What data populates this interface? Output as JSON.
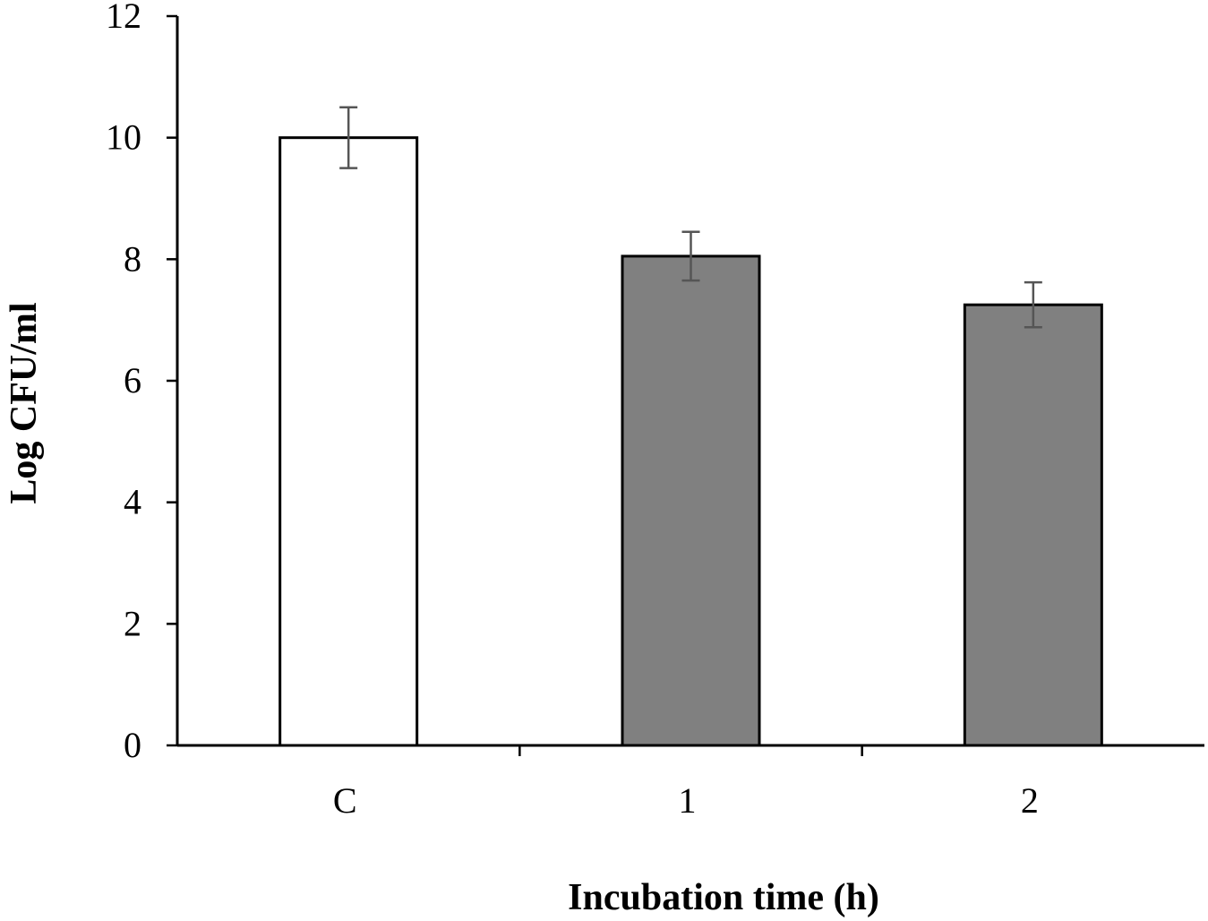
{
  "chart_data": {
    "type": "bar",
    "title": "",
    "xlabel": "Incubation time (h)",
    "ylabel": "Log CFU/ml",
    "categories": [
      "C",
      "1",
      "2"
    ],
    "values": [
      10.0,
      8.05,
      7.25
    ],
    "errors": [
      0.5,
      0.4,
      0.37
    ],
    "bar_colors": [
      "#ffffff",
      "#808080",
      "#808080"
    ],
    "ylim": [
      0,
      12
    ],
    "yticks": [
      0,
      2,
      4,
      6,
      8,
      10,
      12
    ],
    "grid": false,
    "legend": "none"
  }
}
